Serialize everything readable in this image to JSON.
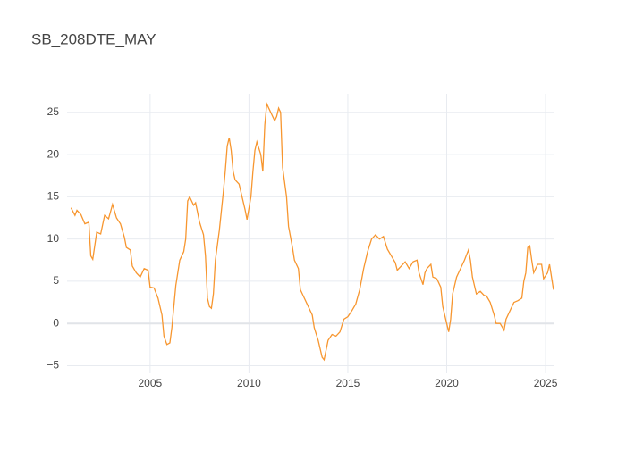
{
  "chart_data": {
    "type": "line",
    "title": "SB_208DTE_MAY",
    "color": "#f7962f",
    "grid": true,
    "xlim": [
      2000.8,
      2025.45
    ],
    "xticks": [
      2005,
      2010,
      2015,
      2020,
      2025
    ],
    "ylim": [
      -5.9,
      27.2
    ],
    "yticks": [
      {
        "value": -5,
        "label": "−5"
      },
      0,
      5,
      10,
      15,
      20,
      25
    ],
    "x": [
      2001.0,
      2001.2,
      2001.3,
      2001.5,
      2001.7,
      2001.9,
      2002.0,
      2002.1,
      2002.3,
      2002.5,
      2002.7,
      2002.9,
      2003.1,
      2003.3,
      2003.5,
      2003.7,
      2003.8,
      2004.0,
      2004.1,
      2004.3,
      2004.5,
      2004.7,
      2004.9,
      2005.0,
      2005.2,
      2005.4,
      2005.6,
      2005.7,
      2005.85,
      2006.0,
      2006.1,
      2006.3,
      2006.5,
      2006.7,
      2006.8,
      2006.9,
      2007.0,
      2007.2,
      2007.3,
      2007.5,
      2007.7,
      2007.8,
      2007.9,
      2008.0,
      2008.1,
      2008.2,
      2008.3,
      2008.5,
      2008.7,
      2008.8,
      2008.9,
      2009.0,
      2009.1,
      2009.2,
      2009.3,
      2009.5,
      2009.6,
      2009.8,
      2009.9,
      2010.1,
      2010.2,
      2010.3,
      2010.4,
      2010.6,
      2010.7,
      2010.8,
      2010.9,
      2011.1,
      2011.3,
      2011.4,
      2011.5,
      2011.6,
      2011.7,
      2011.9,
      2012.0,
      2012.2,
      2012.3,
      2012.5,
      2012.6,
      2012.8,
      2013.0,
      2013.2,
      2013.3,
      2013.5,
      2013.7,
      2013.8,
      2014.0,
      2014.2,
      2014.4,
      2014.6,
      2014.8,
      2015.0,
      2015.2,
      2015.4,
      2015.6,
      2015.8,
      2016.0,
      2016.2,
      2016.4,
      2016.6,
      2016.8,
      2017.0,
      2017.2,
      2017.4,
      2017.5,
      2017.7,
      2017.9,
      2018.1,
      2018.3,
      2018.5,
      2018.6,
      2018.8,
      2018.9,
      2019.0,
      2019.2,
      2019.3,
      2019.5,
      2019.7,
      2019.8,
      2019.9,
      2020.0,
      2020.1,
      2020.2,
      2020.3,
      2020.5,
      2020.6,
      2020.8,
      2020.9,
      2021.1,
      2021.2,
      2021.3,
      2021.4,
      2021.5,
      2021.7,
      2021.9,
      2022.0,
      2022.2,
      2022.4,
      2022.5,
      2022.7,
      2022.9,
      2023.0,
      2023.2,
      2023.4,
      2023.6,
      2023.8,
      2023.9,
      2024.0,
      2024.1,
      2024.2,
      2024.3,
      2024.4,
      2024.5,
      2024.6,
      2024.8,
      2024.9,
      2025.1,
      2025.2,
      2025.3,
      2025.4
    ],
    "values": [
      13.7,
      12.8,
      13.4,
      12.9,
      11.8,
      12.0,
      8.0,
      7.6,
      10.8,
      10.6,
      12.8,
      12.4,
      14.1,
      12.5,
      11.8,
      10.2,
      9.0,
      8.7,
      6.8,
      6.0,
      5.5,
      6.5,
      6.3,
      4.3,
      4.2,
      3.0,
      1.0,
      -1.5,
      -2.5,
      -2.3,
      -0.5,
      4.5,
      7.5,
      8.5,
      10.0,
      14.5,
      15.0,
      14.0,
      14.3,
      12.0,
      10.5,
      8.0,
      3.0,
      2.0,
      1.8,
      3.5,
      7.5,
      11.0,
      15.5,
      18.0,
      21.0,
      22.0,
      20.5,
      18.0,
      17.0,
      16.5,
      15.5,
      13.5,
      12.3,
      15.0,
      18.0,
      20.5,
      21.5,
      20.0,
      18.0,
      23.5,
      26.0,
      25.0,
      24.0,
      24.5,
      25.5,
      25.0,
      18.5,
      15.0,
      11.5,
      9.0,
      7.5,
      6.5,
      4.0,
      3.0,
      2.0,
      1.0,
      -0.5,
      -2.0,
      -4.0,
      -4.3,
      -2.0,
      -1.3,
      -1.5,
      -1.0,
      0.5,
      0.8,
      1.5,
      2.3,
      4.0,
      6.5,
      8.5,
      10.0,
      10.5,
      10.0,
      10.3,
      8.8,
      8.0,
      7.2,
      6.3,
      6.8,
      7.3,
      6.5,
      7.3,
      7.5,
      6.0,
      4.6,
      6.0,
      6.5,
      7.0,
      5.5,
      5.3,
      4.3,
      2.0,
      1.0,
      0.0,
      -1.0,
      0.5,
      3.5,
      5.5,
      6.0,
      7.0,
      7.5,
      8.7,
      7.5,
      5.5,
      4.5,
      3.5,
      3.8,
      3.3,
      3.3,
      2.5,
      1.0,
      0.0,
      0.0,
      -0.8,
      0.5,
      1.5,
      2.5,
      2.7,
      3.0,
      5.0,
      6.0,
      9.0,
      9.2,
      7.5,
      6.0,
      6.5,
      7.0,
      7.0,
      5.3,
      6.0,
      7.0,
      5.5,
      4.0
    ]
  }
}
